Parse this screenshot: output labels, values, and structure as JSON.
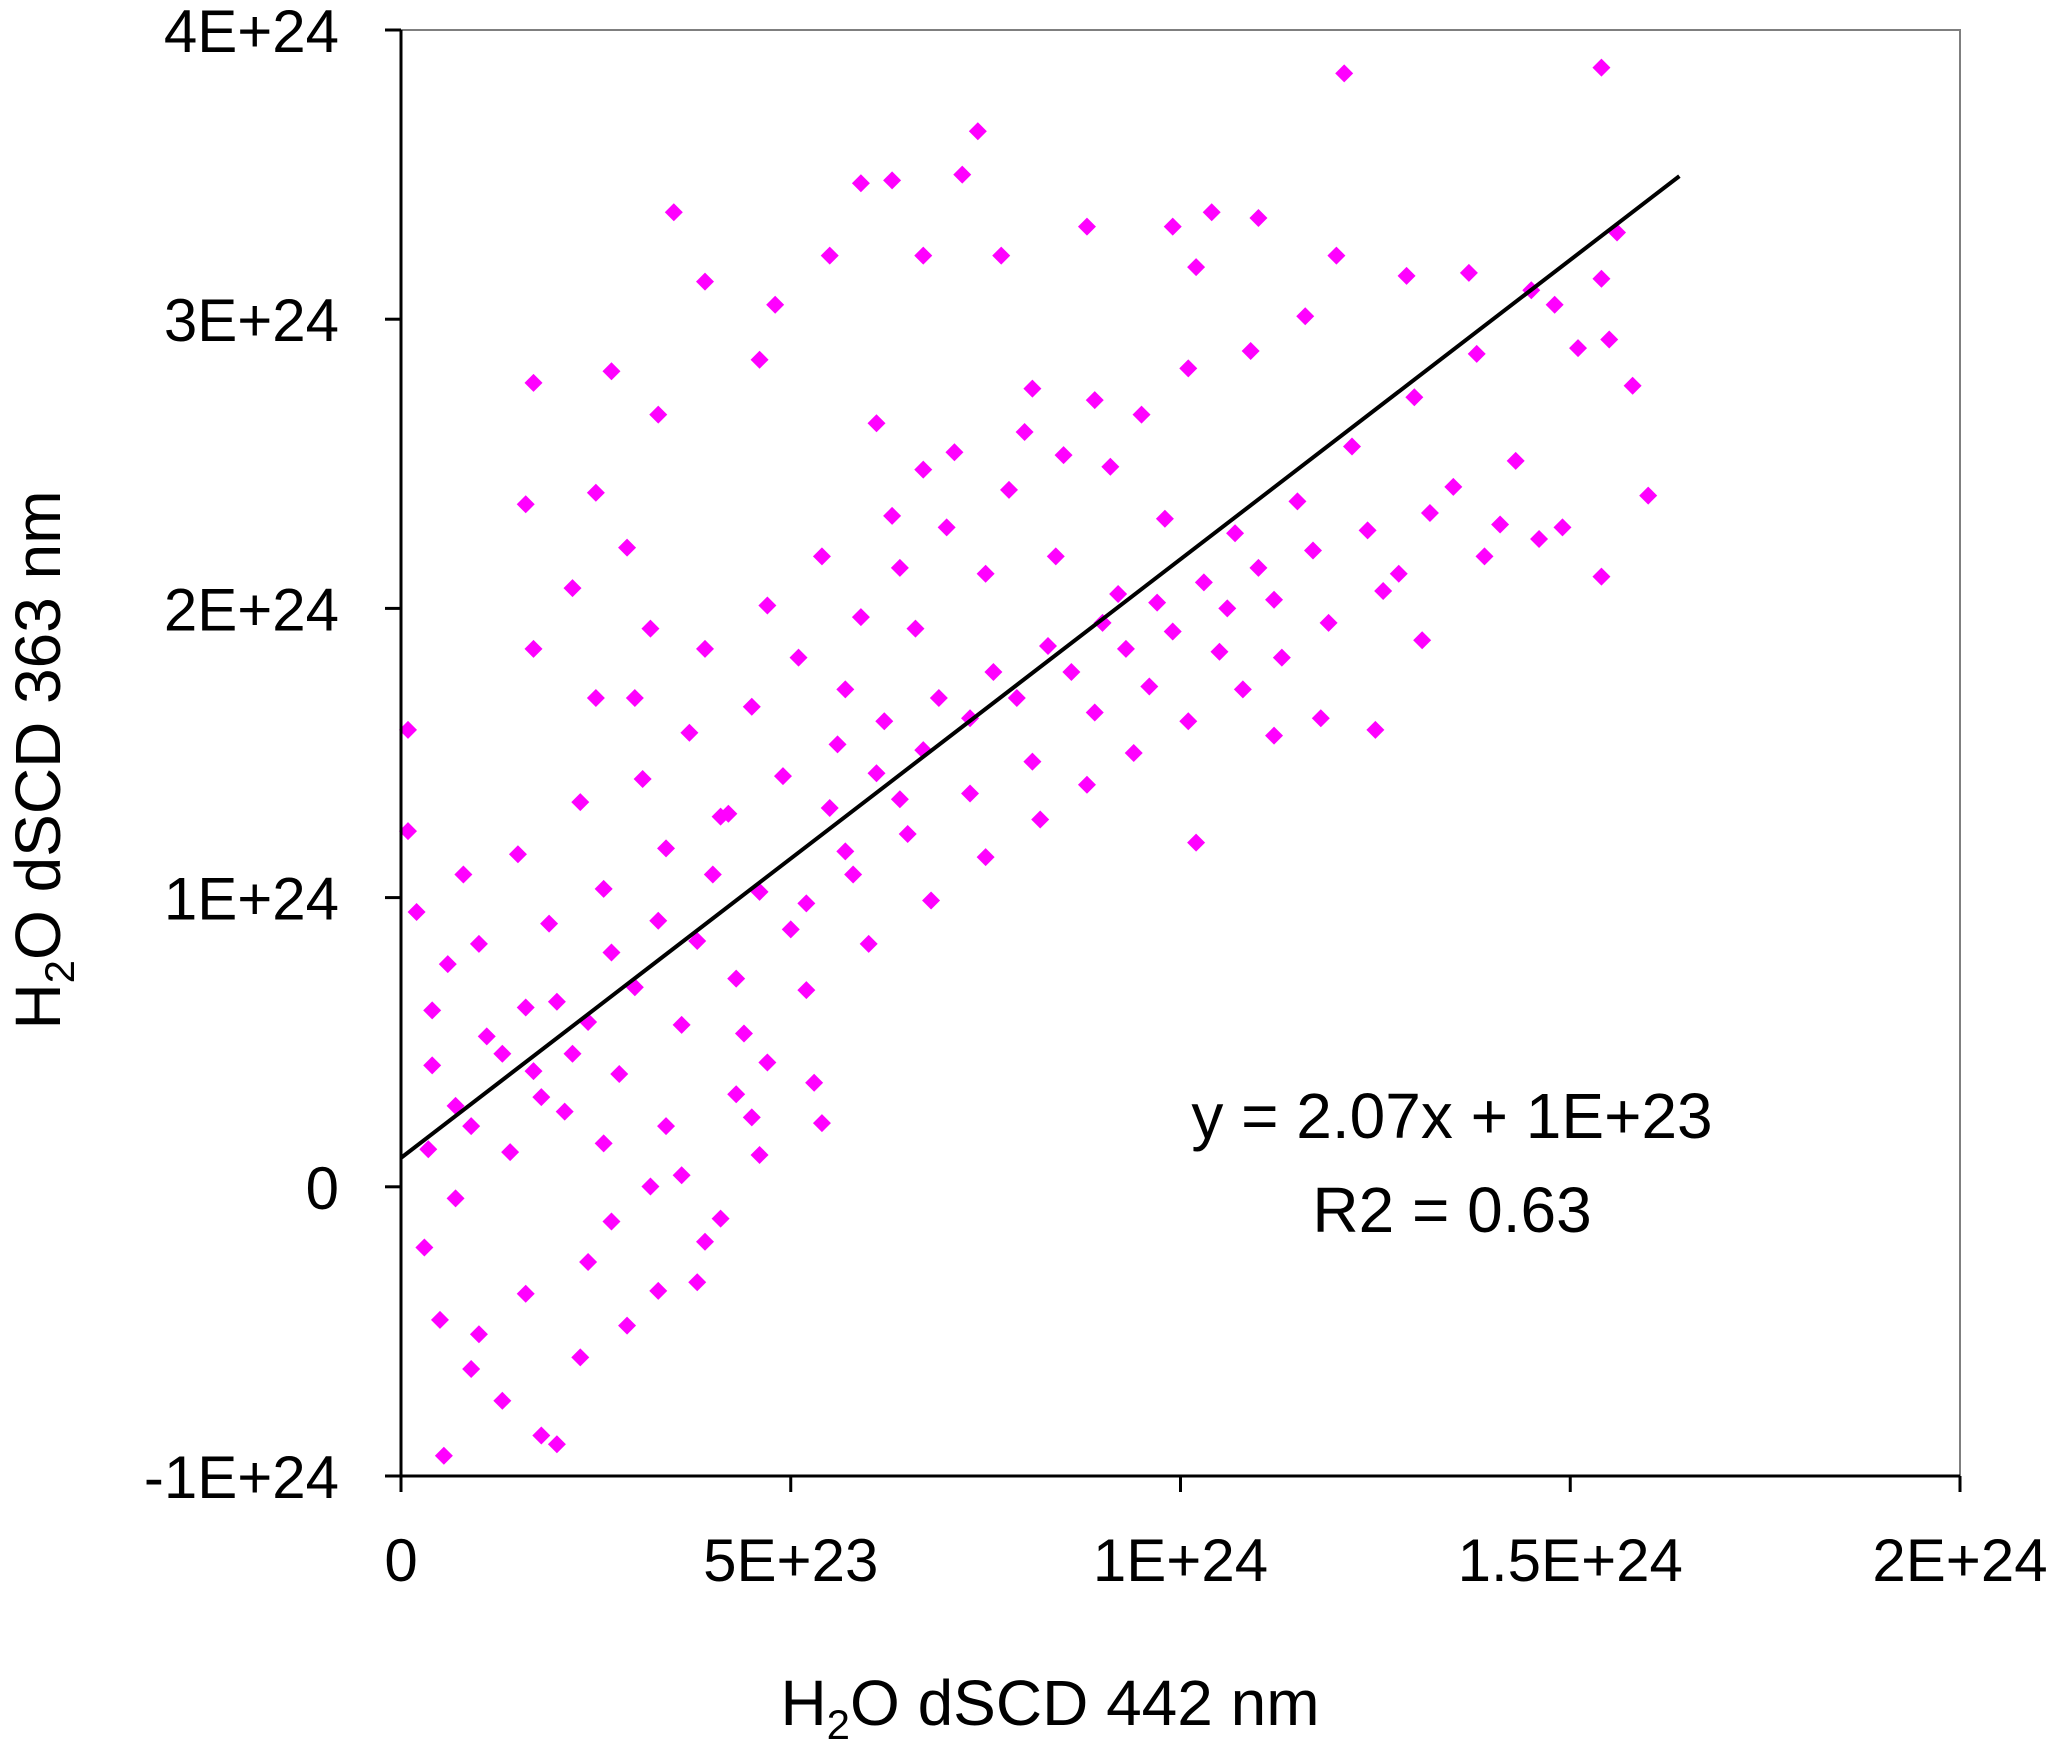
{
  "colors": {
    "points": "#ff00ff",
    "line": "#000000",
    "axes": "#7f7f7f",
    "text": "#000000"
  },
  "chart_data": {
    "type": "scatter",
    "title": "",
    "xlabel": {
      "pre": "H",
      "sub": "2",
      "post": "O dSCD 442 nm"
    },
    "ylabel": {
      "pre": "H",
      "sub": "2",
      "post": "O dSCD 363 nm"
    },
    "xlim": [
      0,
      2e+24
    ],
    "ylim": [
      -1e+24,
      4e+24
    ],
    "x_ticks": [
      0,
      5e+23,
      1e+24,
      1.5e+24,
      2e+24
    ],
    "x_tick_labels": [
      "0",
      "5E+23",
      "1E+24",
      "1.5E+24",
      "2E+24"
    ],
    "y_ticks": [
      -1e+24,
      0,
      1e+24,
      2e+24,
      3e+24,
      4e+24
    ],
    "y_tick_labels": [
      "-1E+24",
      "0",
      "1E+24",
      "2E+24",
      "3E+24",
      "4E+24"
    ],
    "grid": false,
    "legend": "none",
    "trendline": {
      "slope": 2.07,
      "intercept": 1e+23,
      "x_range": [
        0,
        1.64e+24
      ]
    },
    "annotations": {
      "equation": "y = 2.07x + 1E+23",
      "r2": "R2 = 0.63"
    },
    "series": [
      {
        "marker": "diamond",
        "points": [
          [
            1.21e+24,
            3.85e+24
          ],
          [
            1.54e+24,
            3.87e+24
          ],
          [
            7.4e+23,
            3.65e+24
          ],
          [
            7.2e+23,
            3.5e+24
          ],
          [
            5.9e+23,
            3.47e+24
          ],
          [
            6.3e+23,
            3.48e+24
          ],
          [
            3.5e+23,
            3.37e+24
          ],
          [
            1.04e+24,
            3.37e+24
          ],
          [
            1.1e+24,
            3.35e+24
          ],
          [
            1.56e+24,
            3.3e+24
          ],
          [
            8.8e+23,
            3.32e+24
          ],
          [
            9.9e+23,
            3.32e+24
          ],
          [
            6.7e+23,
            3.22e+24
          ],
          [
            5.5e+23,
            3.22e+24
          ],
          [
            7.7e+23,
            3.22e+24
          ],
          [
            1.2e+24,
            3.22e+24
          ],
          [
            1.54e+24,
            3.14e+24
          ],
          [
            1.29e+24,
            3.15e+24
          ],
          [
            1.37e+24,
            3.16e+24
          ],
          [
            1.02e+24,
            3.18e+24
          ],
          [
            1.45e+24,
            3.1e+24
          ],
          [
            1.48e+24,
            3.05e+24
          ],
          [
            1.55e+24,
            2.93e+24
          ],
          [
            1.51e+24,
            2.9e+24
          ],
          [
            1.58e+24,
            2.77e+24
          ],
          [
            1.6e+24,
            2.39e+24
          ],
          [
            1.54e+24,
            2.11e+24
          ],
          [
            1.49e+24,
            2.28e+24
          ],
          [
            1.31e+24,
            1.89e+24
          ],
          [
            1.02e+24,
            1.19e+24
          ],
          [
            3.3e+23,
            2.67e+24
          ],
          [
            2.7e+23,
            2.82e+24
          ],
          [
            1.7e+23,
            2.78e+24
          ],
          [
            2.5e+23,
            2.4e+24
          ],
          [
            1.6e+23,
            2.36e+24
          ],
          [
            3.9e+23,
            3.13e+24
          ],
          [
            4.6e+23,
            2.86e+24
          ],
          [
            4.8e+23,
            3.05e+24
          ],
          [
            9e+21,
            1.58e+24
          ],
          [
            9e+21,
            1.23e+24
          ],
          [
            2e+23,
            -8.9e+23
          ],
          [
            1.8e+23,
            -8.6e+23
          ],
          [
            5.5e+22,
            -9.3e+23
          ],
          [
            4.5e+23,
            2.4e+23
          ],
          [
            5.4e+23,
            2.2e+23
          ],
          [
            4.6e+23,
            1.1e+23
          ],
          [
            3.8e+23,
            -3.3e+23
          ],
          [
            5.3e+23,
            3.6e+23
          ],
          [
            1.35e+24,
            2.42e+24
          ],
          [
            1.41e+24,
            2.29e+24
          ],
          [
            1.28e+24,
            2.12e+24
          ],
          [
            1.12e+24,
            1.56e+24
          ],
          [
            1.18e+24,
            1.62e+24
          ],
          [
            1.25e+24,
            1.58e+24
          ],
          [
            9.5e+23,
            2.67e+24
          ],
          [
            8.1e+23,
            2.76e+24
          ],
          [
            6.7e+23,
            2.48e+24
          ],
          [
            6.1e+23,
            2.64e+24
          ],
          [
            2.2e+23,
            2.07e+24
          ],
          [
            1.7e+23,
            1.86e+24
          ],
          [
            2.9e+23,
            2.21e+24
          ],
          [
            3.2e+23,
            1.93e+24
          ],
          [
            2.5e+23,
            1.69e+24
          ],
          [
            4.1e+23,
            1.28e+24
          ],
          [
            5.7e+23,
            1.72e+24
          ],
          [
            6.6e+23,
            1.93e+24
          ],
          [
            7.5e+23,
            2.12e+24
          ],
          [
            8.4e+23,
            2.18e+24
          ],
          [
            9.2e+23,
            2.05e+24
          ],
          [
            9.8e+23,
            2.31e+24
          ],
          [
            1.07e+24,
            2.26e+24
          ],
          [
            1.15e+24,
            2.37e+24
          ],
          [
            1.22e+24,
            2.56e+24
          ],
          [
            1.3e+24,
            2.73e+24
          ],
          [
            1.38e+24,
            2.88e+24
          ],
          [
            1.43e+24,
            2.51e+24
          ],
          [
            1.05e+24,
            1.85e+24
          ],
          [
            9.6e+23,
            1.73e+24
          ],
          [
            8.9e+23,
            1.64e+24
          ],
          [
            8.1e+23,
            1.47e+24
          ],
          [
            7.3e+23,
            1.36e+24
          ],
          [
            6.5e+23,
            1.22e+24
          ],
          [
            5.8e+23,
            1.08e+24
          ],
          [
            5e+23,
            8.9e+23
          ],
          [
            4.3e+23,
            7.2e+23
          ],
          [
            3.6e+23,
            5.6e+23
          ],
          [
            2.8e+23,
            3.9e+23
          ],
          [
            2.1e+23,
            2.6e+23
          ],
          [
            1.4e+23,
            1.2e+23
          ],
          [
            7e+22,
            -4e+22
          ],
          [
            3e+22,
            -2.1e+23
          ],
          [
            5e+22,
            -4.6e+23
          ],
          [
            9e+22,
            -6.3e+23
          ],
          [
            1.3e+23,
            -7.4e+23
          ],
          [
            2.3e+23,
            -5.9e+23
          ],
          [
            2.9e+23,
            -4.8e+23
          ],
          [
            3.3e+23,
            -3.6e+23
          ],
          [
            3.9e+23,
            -1.9e+23
          ],
          [
            4.1e+23,
            -1.1e+23
          ],
          [
            3.6e+23,
            4e+22
          ],
          [
            2.6e+23,
            1.5e+23
          ],
          [
            1.8e+23,
            3.1e+23
          ],
          [
            1.1e+23,
            5.2e+23
          ],
          [
            6e+22,
            7.7e+23
          ],
          [
            2e+22,
            9.5e+23
          ],
          [
            8e+22,
            1.08e+24
          ],
          [
            1.5e+23,
            1.15e+24
          ],
          [
            2.3e+23,
            1.33e+24
          ],
          [
            3.1e+23,
            1.41e+24
          ],
          [
            3.7e+23,
            1.57e+24
          ],
          [
            4.5e+23,
            1.66e+24
          ],
          [
            5.1e+23,
            1.83e+24
          ],
          [
            5.9e+23,
            1.97e+24
          ],
          [
            6.4e+23,
            2.14e+24
          ],
          [
            7e+23,
            2.28e+24
          ],
          [
            7.8e+23,
            2.41e+24
          ],
          [
            8.5e+23,
            2.53e+24
          ],
          [
            9.1e+23,
            2.49e+24
          ],
          [
            4.9e+23,
            1.42e+24
          ],
          [
            5.6e+23,
            1.53e+24
          ],
          [
            6.2e+23,
            1.61e+24
          ],
          [
            6.9e+23,
            1.69e+24
          ],
          [
            7.6e+23,
            1.78e+24
          ],
          [
            8.3e+23,
            1.87e+24
          ],
          [
            9e+23,
            1.95e+24
          ],
          [
            9.7e+23,
            2.02e+24
          ],
          [
            1.03e+24,
            2.09e+24
          ],
          [
            1.1e+24,
            2.14e+24
          ],
          [
            1.17e+24,
            2.2e+24
          ],
          [
            1.24e+24,
            2.27e+24
          ],
          [
            1.32e+24,
            2.33e+24
          ],
          [
            1.39e+24,
            2.18e+24
          ],
          [
            1.46e+24,
            2.24e+24
          ],
          [
            4e+23,
            1.08e+24
          ],
          [
            3.3e+23,
            9.2e+23
          ],
          [
            2.7e+23,
            8.1e+23
          ],
          [
            2e+23,
            6.4e+23
          ],
          [
            1.3e+23,
            4.6e+23
          ],
          [
            7e+22,
            2.8e+23
          ],
          [
            3.5e+22,
            1.3e+23
          ],
          [
            4.4e+23,
            5.3e+23
          ],
          [
            5.2e+23,
            6.8e+23
          ],
          [
            6e+23,
            8.4e+23
          ],
          [
            6.8e+23,
            9.9e+23
          ],
          [
            7.5e+23,
            1.14e+24
          ],
          [
            8.2e+23,
            1.27e+24
          ],
          [
            8.8e+23,
            1.39e+24
          ],
          [
            9.4e+23,
            1.5e+24
          ],
          [
            1.01e+24,
            1.61e+24
          ],
          [
            1.08e+24,
            1.72e+24
          ],
          [
            1.13e+24,
            1.83e+24
          ],
          [
            1.19e+24,
            1.95e+24
          ],
          [
            1.26e+24,
            2.06e+24
          ],
          [
            2.4e+23,
            -2.6e+23
          ],
          [
            1.6e+23,
            -3.7e+23
          ],
          [
            1e+23,
            -5.1e+23
          ],
          [
            2.7e+23,
            -1.2e+23
          ],
          [
            3.2e+23,
            1e+21
          ],
          [
            4.3e+23,
            3.2e+23
          ],
          [
            4.7e+23,
            4.3e+23
          ],
          [
            3.4e+23,
            2.1e+23
          ],
          [
            2.2e+23,
            4.6e+23
          ],
          [
            1.6e+23,
            6.2e+23
          ],
          [
            1e+23,
            8.4e+23
          ],
          [
            4e+22,
            6.1e+23
          ],
          [
            1.9e+23,
            9.1e+23
          ],
          [
            2.6e+23,
            1.03e+24
          ],
          [
            3.4e+23,
            1.17e+24
          ],
          [
            4.2e+23,
            1.29e+24
          ],
          [
            5.5e+23,
            1.31e+24
          ],
          [
            6.1e+23,
            1.43e+24
          ],
          [
            6.7e+23,
            1.51e+24
          ],
          [
            7.3e+23,
            1.62e+24
          ],
          [
            7.9e+23,
            1.69e+24
          ],
          [
            8.6e+23,
            1.78e+24
          ],
          [
            9.3e+23,
            1.86e+24
          ],
          [
            9.9e+23,
            1.92e+24
          ],
          [
            1.06e+24,
            2e+24
          ],
          [
            1.12e+24,
            2.03e+24
          ],
          [
            6.3e+23,
            2.32e+24
          ],
          [
            5.4e+23,
            2.18e+24
          ],
          [
            4.7e+23,
            2.01e+24
          ],
          [
            3.9e+23,
            1.86e+24
          ],
          [
            3e+23,
            1.69e+24
          ],
          [
            7.1e+23,
            2.54e+24
          ],
          [
            8e+23,
            2.61e+24
          ],
          [
            8.9e+23,
            2.72e+24
          ],
          [
            1.01e+24,
            2.83e+24
          ],
          [
            1.09e+24,
            2.89e+24
          ],
          [
            1.16e+24,
            3.01e+24
          ],
          [
            5.2e+23,
            9.8e+23
          ],
          [
            5.7e+23,
            1.16e+24
          ],
          [
            4.6e+23,
            1.02e+24
          ],
          [
            3.8e+23,
            8.5e+23
          ],
          [
            3e+23,
            6.9e+23
          ],
          [
            2.4e+23,
            5.7e+23
          ],
          [
            1.7e+23,
            4e+23
          ],
          [
            9e+22,
            2.1e+23
          ],
          [
            4e+22,
            4.2e+23
          ],
          [
            6.4e+23,
            1.34e+24
          ]
        ]
      }
    ]
  }
}
